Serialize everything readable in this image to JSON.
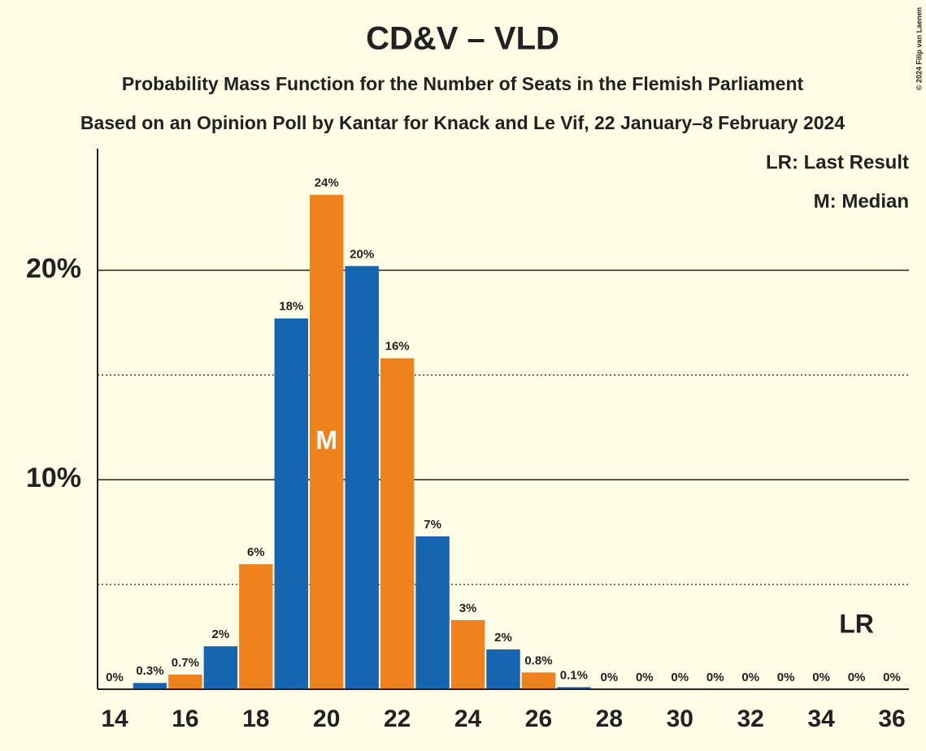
{
  "chart_data": {
    "type": "bar",
    "title": "CD&V – VLD",
    "subtitle": "Probability Mass Function for the Number of Seats in the Flemish Parliament",
    "subtitle2": "Based on an Opinion Poll by Kantar for Knack and Le Vif, 22 January–8 February 2024",
    "copyright": "© 2024 Filip van Laenen",
    "categories": [
      14,
      15,
      16,
      17,
      18,
      19,
      20,
      21,
      22,
      23,
      24,
      25,
      26,
      27,
      28,
      29,
      30,
      31,
      32,
      33,
      34,
      35,
      36
    ],
    "values": [
      0,
      0.3,
      0.7,
      2.05,
      5.97,
      17.7,
      23.6,
      20.2,
      15.8,
      7.3,
      3.3,
      1.9,
      0.8,
      0.1,
      0,
      0,
      0,
      0,
      0,
      0,
      0,
      0,
      0
    ],
    "value_labels": [
      "0%",
      "0.3%",
      "0.7%",
      "2%",
      "6%",
      "18%",
      "24%",
      "20%",
      "16%",
      "7%",
      "3%",
      "2%",
      "0.8%",
      "0.1%",
      "0%",
      "0%",
      "0%",
      "0%",
      "0%",
      "0%",
      "0%",
      "0%",
      "0%"
    ],
    "colors": [
      "#f0821e",
      "#1565b0"
    ],
    "ylim": [
      0,
      25.8
    ],
    "yticks": [
      {
        "value": 10,
        "label": "10%"
      },
      {
        "value": 20,
        "label": "20%"
      }
    ],
    "minor_yticks": [
      5,
      15
    ],
    "xticks": [
      14,
      16,
      18,
      20,
      22,
      24,
      26,
      28,
      30,
      32,
      34,
      36
    ],
    "grid": true,
    "median": {
      "category": 20,
      "label": "M"
    },
    "last_result": {
      "category": 35,
      "label": "LR"
    },
    "legend": [
      "LR: Last Result",
      "M: Median"
    ]
  }
}
